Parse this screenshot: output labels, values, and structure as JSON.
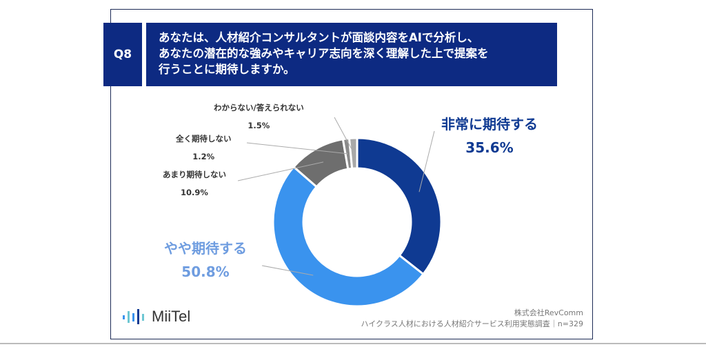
{
  "header": {
    "question_number": "Q8",
    "question_lines": [
      "あなたは、人材紹介コンサルタントが面談内容をAIで分析し、",
      "あなたの潜在的な強みやキャリア志向を深く理解した上で提案を",
      "行うことに期待しますか。"
    ]
  },
  "chart_data": {
    "type": "pie",
    "donut": true,
    "start": "top",
    "direction": "clockwise",
    "slices": [
      {
        "label": "非常に期待する",
        "value": 35.6,
        "value_label": "35.6%",
        "color": "#0f3a92"
      },
      {
        "label": "やや期待する",
        "value": 50.8,
        "value_label": "50.8%",
        "color": "#3a93ee"
      },
      {
        "label": "あまり期待しない",
        "value": 10.9,
        "value_label": "10.9%",
        "color": "#6e6e6e"
      },
      {
        "label": "全く期待しない",
        "value": 1.2,
        "value_label": "1.2%",
        "color": "#8a8a8a"
      },
      {
        "label": "わからない/答えられない",
        "value": 1.5,
        "value_label": "1.5%",
        "color": "#a8a8a8"
      }
    ]
  },
  "footer": {
    "logo_text": "MiiTel",
    "company": "株式会社RevComm",
    "survey": "ハイクラス人材における人材紹介サービス利用実態調査｜n=329"
  }
}
